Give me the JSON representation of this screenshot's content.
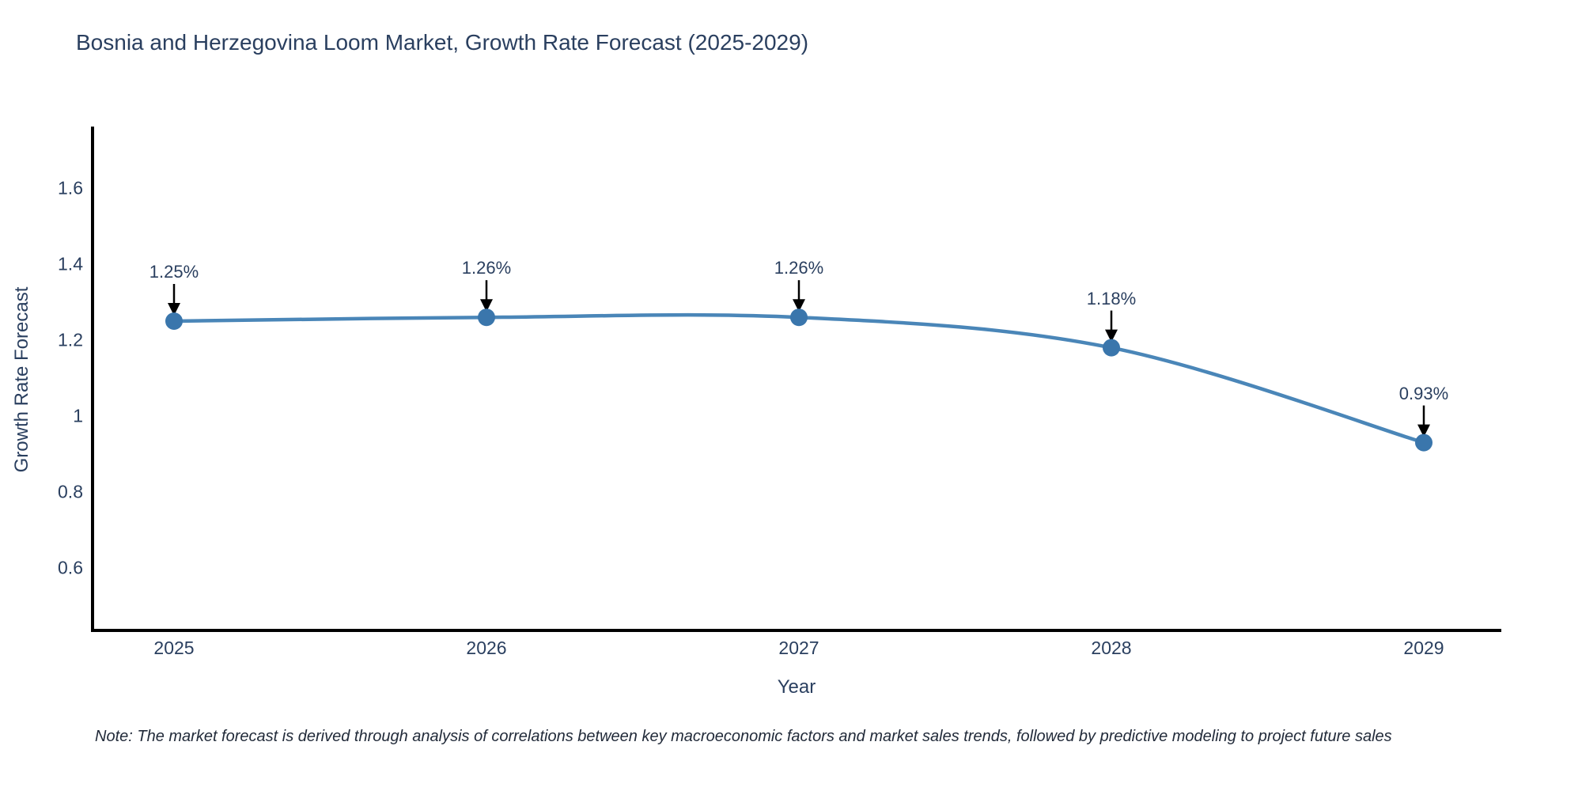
{
  "chart_data": {
    "type": "line",
    "title": "Bosnia and Herzegovina Loom Market, Growth Rate Forecast (2025-2029)",
    "xlabel": "Year",
    "ylabel": "Growth Rate Forecast",
    "x": [
      2025,
      2026,
      2027,
      2028,
      2029
    ],
    "values": [
      1.25,
      1.26,
      1.26,
      1.18,
      0.93
    ],
    "point_labels": [
      "1.25%",
      "1.26%",
      "1.26%",
      "1.18%",
      "0.93%"
    ],
    "x_tick_labels": [
      "2025",
      "2026",
      "2027",
      "2028",
      "2029"
    ],
    "y_tick_labels": [
      "1.6",
      "1.4",
      "1.2",
      "1",
      "0.8",
      "0.6"
    ],
    "y_tick_values": [
      1.6,
      1.4,
      1.2,
      1.0,
      0.8,
      0.6
    ],
    "ylim": [
      0.435,
      1.76
    ],
    "grid": false,
    "legend": "none",
    "line_color": "#4a86b8",
    "marker_color": "#3a76ac",
    "axis_color": "#000000",
    "text_color": "#2a3f5f",
    "annotation_arrow_color": "#000000"
  },
  "note": {
    "text": "Note: The market forecast is derived through analysis of correlations between key macroeconomic factors and market sales trends, followed by predictive modeling to project future sales"
  }
}
